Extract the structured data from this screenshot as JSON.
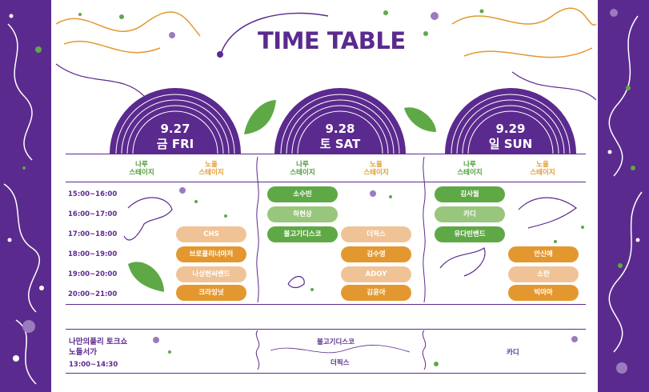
{
  "title": "TIME TABLE",
  "colors": {
    "purple": "#5b2a8e",
    "green": "#5fa846",
    "light_green": "#98c67c",
    "orange": "#e3982f",
    "peach": "#f0c397"
  },
  "days": [
    {
      "date": "9.27",
      "weekday": "금 FRI"
    },
    {
      "date": "9.28",
      "weekday": "토 SAT"
    },
    {
      "date": "9.29",
      "weekday": "일 SUN"
    }
  ],
  "stages": {
    "naru": {
      "line1": "나루",
      "line2": "스테이지"
    },
    "noeul": {
      "line1": "노을",
      "line2": "스테이지"
    }
  },
  "times": [
    "15:00~16:00",
    "16:00~17:00",
    "17:00~18:00",
    "18:00~19:00",
    "19:00~20:00",
    "20:00~21:00"
  ],
  "schedule": {
    "fri_noeul": [
      "CHS",
      "브로콜리너마저",
      "나상현씨밴드",
      "크라잉넛"
    ],
    "sat_naru": [
      "소수빈",
      "하현상",
      "불고기디스코"
    ],
    "sat_noeul": [
      "더픽스",
      "김수영",
      "ADOY",
      "김윤아"
    ],
    "sun_naru": [
      "김사월",
      "카디",
      "유다빈밴드"
    ],
    "sun_noeul": [
      "안신애",
      "소란",
      "빅마마"
    ]
  },
  "talk": {
    "title": "나만의플리 토크쇼",
    "subtitle": "노들서가",
    "time": "13:00~14:30",
    "sat_1": "불고기디스코",
    "sat_2": "더픽스",
    "sun_1": "카디"
  }
}
